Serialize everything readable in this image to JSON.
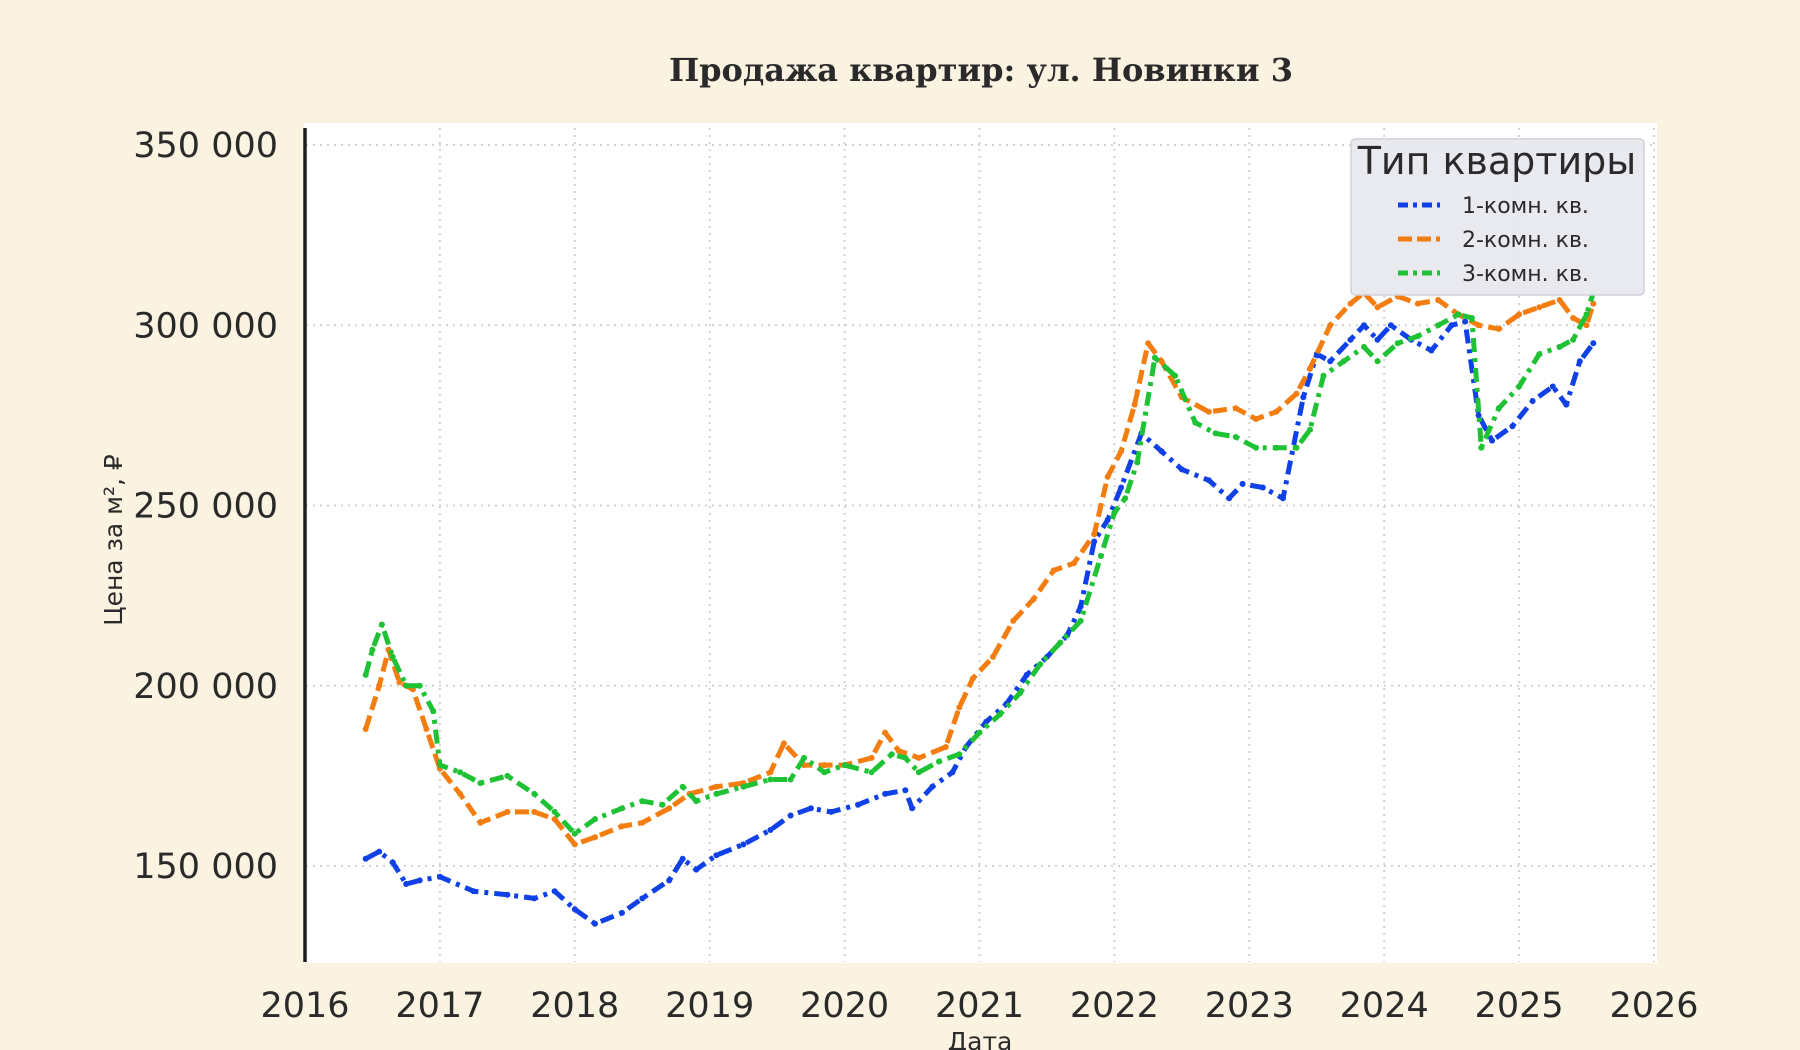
{
  "chart_data": {
    "type": "line",
    "title": "Продажа квартир: ул. Новинки 3",
    "xlabel": "Дата",
    "ylabel": "Цена за м², ₽",
    "xlim": [
      2016.0,
      2026.0
    ],
    "ylim": [
      125000,
      355000
    ],
    "x_ticks": [
      2016,
      2017,
      2018,
      2019,
      2020,
      2021,
      2022,
      2023,
      2024,
      2025,
      2026
    ],
    "x_tick_labels": [
      "2016",
      "2017",
      "2018",
      "2019",
      "2020",
      "2021",
      "2022",
      "2023",
      "2024",
      "2025",
      "2026"
    ],
    "y_ticks": [
      150000,
      200000,
      250000,
      300000,
      350000
    ],
    "y_tick_labels": [
      "150 000",
      "200 000",
      "250 000",
      "300 000",
      "350 000"
    ],
    "grid": true,
    "legend": {
      "title": "Тип квартиры",
      "placement": "top-right"
    },
    "series": [
      {
        "name": "1-комн. кв.",
        "color": "#1041e6",
        "style": "dash-dot",
        "x": [
          2016.45,
          2016.55,
          2016.65,
          2016.75,
          2016.85,
          2017.0,
          2017.25,
          2017.5,
          2017.7,
          2017.85,
          2018.0,
          2018.15,
          2018.35,
          2018.5,
          2018.7,
          2018.8,
          2018.9,
          2019.05,
          2019.25,
          2019.45,
          2019.6,
          2019.75,
          2019.9,
          2020.1,
          2020.3,
          2020.45,
          2020.5,
          2020.65,
          2020.8,
          2020.9,
          2021.05,
          2021.2,
          2021.35,
          2021.5,
          2021.65,
          2021.75,
          2021.85,
          2021.95,
          2022.05,
          2022.2,
          2022.35,
          2022.5,
          2022.7,
          2022.85,
          2022.95,
          2023.1,
          2023.25,
          2023.4,
          2023.5,
          2023.6,
          2023.75,
          2023.85,
          2023.95,
          2024.05,
          2024.2,
          2024.35,
          2024.5,
          2024.6,
          2024.7,
          2024.8,
          2024.95,
          2025.1,
          2025.25,
          2025.35,
          2025.45,
          2025.55
        ],
        "y": [
          152000,
          154000,
          151000,
          145000,
          146000,
          147000,
          143000,
          142000,
          141000,
          143000,
          138000,
          134000,
          137000,
          141000,
          146000,
          152000,
          149000,
          153000,
          156000,
          160000,
          164000,
          166000,
          165000,
          167000,
          170000,
          171000,
          166000,
          172000,
          176000,
          183000,
          190000,
          195000,
          203000,
          208000,
          214000,
          222000,
          240000,
          246000,
          255000,
          270000,
          265000,
          260000,
          257000,
          252000,
          256000,
          255000,
          252000,
          280000,
          292000,
          290000,
          296000,
          300000,
          296000,
          300000,
          296000,
          293000,
          300000,
          301000,
          275000,
          268000,
          272000,
          279000,
          283000,
          278000,
          290000,
          295000
        ]
      },
      {
        "name": "2-комн. кв.",
        "color": "#f47d10",
        "style": "dashed",
        "x": [
          2016.45,
          2016.55,
          2016.62,
          2016.7,
          2016.8,
          2016.9,
          2017.0,
          2017.15,
          2017.3,
          2017.5,
          2017.7,
          2017.85,
          2018.0,
          2018.15,
          2018.35,
          2018.5,
          2018.7,
          2018.85,
          2019.05,
          2019.25,
          2019.45,
          2019.55,
          2019.7,
          2019.85,
          2020.0,
          2020.2,
          2020.3,
          2020.4,
          2020.55,
          2020.75,
          2020.85,
          2020.95,
          2021.1,
          2021.25,
          2021.4,
          2021.55,
          2021.7,
          2021.85,
          2021.95,
          2022.05,
          2022.15,
          2022.25,
          2022.35,
          2022.5,
          2022.7,
          2022.9,
          2023.05,
          2023.2,
          2023.35,
          2023.45,
          2023.6,
          2023.75,
          2023.85,
          2023.95,
          2024.1,
          2024.25,
          2024.4,
          2024.55,
          2024.7,
          2024.85,
          2025.0,
          2025.15,
          2025.3,
          2025.4,
          2025.5,
          2025.55
        ],
        "y": [
          188000,
          200000,
          210000,
          201000,
          199000,
          188000,
          177000,
          170000,
          162000,
          165000,
          165000,
          163000,
          156000,
          158000,
          161000,
          162000,
          166000,
          170000,
          172000,
          173000,
          176000,
          184000,
          178000,
          178000,
          178000,
          180000,
          187000,
          182000,
          180000,
          183000,
          194000,
          202000,
          208000,
          218000,
          224000,
          232000,
          234000,
          242000,
          258000,
          265000,
          278000,
          295000,
          290000,
          280000,
          276000,
          277000,
          274000,
          276000,
          281000,
          288000,
          300000,
          306000,
          309000,
          305000,
          308000,
          306000,
          307000,
          303000,
          300000,
          299000,
          303000,
          305000,
          307000,
          302000,
          300000,
          306000
        ]
      },
      {
        "name": "3-комн. кв.",
        "color": "#1fc234",
        "style": "dash-dot",
        "x": [
          2016.45,
          2016.5,
          2016.57,
          2016.65,
          2016.75,
          2016.85,
          2016.95,
          2017.0,
          2017.15,
          2017.3,
          2017.5,
          2017.7,
          2017.85,
          2018.0,
          2018.15,
          2018.35,
          2018.5,
          2018.65,
          2018.8,
          2018.9,
          2019.05,
          2019.25,
          2019.45,
          2019.6,
          2019.7,
          2019.85,
          2020.0,
          2020.2,
          2020.35,
          2020.45,
          2020.55,
          2020.7,
          2020.85,
          2021.0,
          2021.15,
          2021.3,
          2021.45,
          2021.6,
          2021.75,
          2021.9,
          2022.0,
          2022.08,
          2022.17,
          2022.3,
          2022.45,
          2022.6,
          2022.75,
          2022.9,
          2023.05,
          2023.2,
          2023.35,
          2023.45,
          2023.55,
          2023.7,
          2023.85,
          2023.95,
          2024.1,
          2024.25,
          2024.4,
          2024.55,
          2024.65,
          2024.72,
          2024.85,
          2025.0,
          2025.15,
          2025.3,
          2025.4,
          2025.5,
          2025.55
        ],
        "y": [
          203000,
          210000,
          217000,
          208000,
          200000,
          200000,
          193000,
          178000,
          176000,
          173000,
          175000,
          170000,
          165000,
          159000,
          163000,
          166000,
          168000,
          167000,
          172000,
          168000,
          170000,
          172000,
          174000,
          174000,
          180000,
          176000,
          178000,
          176000,
          181000,
          180000,
          176000,
          179000,
          181000,
          187000,
          192000,
          198000,
          206000,
          212000,
          218000,
          236000,
          248000,
          252000,
          262000,
          291000,
          286000,
          273000,
          270000,
          269000,
          266000,
          266000,
          266000,
          271000,
          286000,
          290000,
          294000,
          290000,
          295000,
          297000,
          300000,
          303000,
          302000,
          266000,
          277000,
          283000,
          292000,
          294000,
          296000,
          303000,
          309000
        ]
      }
    ]
  }
}
